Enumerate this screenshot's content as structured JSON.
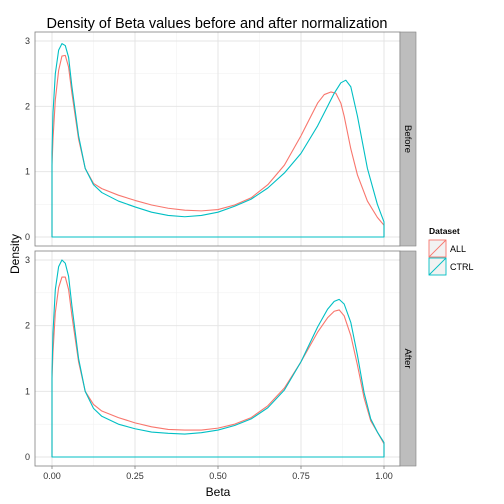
{
  "chart_data": {
    "type": "area",
    "title": "Density of Beta values before and after normalization",
    "xlabel": "Beta",
    "ylabel": "Density",
    "xlim": [
      0,
      1
    ],
    "ylim": [
      0,
      3
    ],
    "x_ticks": [
      "0.00",
      "0.25",
      "0.50",
      "0.75",
      "1.00"
    ],
    "y_ticks": [
      "0",
      "1",
      "2",
      "3"
    ],
    "grid": true,
    "legend": {
      "title": "Dataset",
      "position": "right",
      "entries": [
        {
          "name": "ALL",
          "color": "#F8766D"
        },
        {
          "name": "CTRL",
          "color": "#00BFC4"
        }
      ]
    },
    "panels": [
      {
        "label": "Before",
        "series": [
          {
            "name": "ALL",
            "color": "#F8766D",
            "x": [
              0,
              0.003,
              0.01,
              0.02,
              0.03,
              0.04,
              0.05,
              0.06,
              0.08,
              0.1,
              0.125,
              0.15,
              0.2,
              0.25,
              0.3,
              0.35,
              0.4,
              0.45,
              0.5,
              0.55,
              0.6,
              0.65,
              0.7,
              0.75,
              0.78,
              0.8,
              0.82,
              0.84,
              0.855,
              0.87,
              0.88,
              0.9,
              0.92,
              0.95,
              0.98,
              1.0
            ],
            "y": [
              1.1,
              1.5,
              2.1,
              2.55,
              2.77,
              2.78,
              2.6,
              2.2,
              1.5,
              1.05,
              0.82,
              0.74,
              0.64,
              0.56,
              0.49,
              0.44,
              0.41,
              0.4,
              0.42,
              0.49,
              0.6,
              0.8,
              1.1,
              1.55,
              1.85,
              2.05,
              2.18,
              2.22,
              2.2,
              2.05,
              1.85,
              1.35,
              0.95,
              0.55,
              0.3,
              0.18
            ]
          },
          {
            "name": "CTRL",
            "color": "#00BFC4",
            "x": [
              0,
              0.003,
              0.01,
              0.02,
              0.03,
              0.04,
              0.05,
              0.06,
              0.08,
              0.1,
              0.125,
              0.15,
              0.2,
              0.25,
              0.3,
              0.35,
              0.4,
              0.45,
              0.5,
              0.55,
              0.6,
              0.65,
              0.7,
              0.75,
              0.8,
              0.83,
              0.85,
              0.87,
              0.885,
              0.9,
              0.92,
              0.95,
              0.98,
              1.0
            ],
            "y": [
              1.3,
              1.9,
              2.5,
              2.86,
              2.96,
              2.93,
              2.75,
              2.3,
              1.55,
              1.05,
              0.8,
              0.68,
              0.55,
              0.46,
              0.38,
              0.33,
              0.31,
              0.33,
              0.38,
              0.47,
              0.58,
              0.75,
              0.98,
              1.28,
              1.7,
              2.0,
              2.2,
              2.36,
              2.4,
              2.3,
              1.85,
              1.05,
              0.5,
              0.23
            ]
          }
        ]
      },
      {
        "label": "After",
        "series": [
          {
            "name": "ALL",
            "color": "#F8766D",
            "x": [
              0,
              0.003,
              0.01,
              0.02,
              0.03,
              0.04,
              0.05,
              0.06,
              0.08,
              0.1,
              0.125,
              0.15,
              0.2,
              0.25,
              0.3,
              0.35,
              0.4,
              0.45,
              0.5,
              0.55,
              0.6,
              0.65,
              0.7,
              0.75,
              0.8,
              0.83,
              0.85,
              0.865,
              0.88,
              0.9,
              0.92,
              0.94,
              0.96,
              0.98,
              1.0
            ],
            "y": [
              1.2,
              1.6,
              2.2,
              2.58,
              2.74,
              2.74,
              2.55,
              2.15,
              1.45,
              1.0,
              0.8,
              0.7,
              0.6,
              0.52,
              0.46,
              0.42,
              0.41,
              0.41,
              0.44,
              0.5,
              0.6,
              0.78,
              1.05,
              1.45,
              1.9,
              2.12,
              2.22,
              2.24,
              2.15,
              1.85,
              1.4,
              0.9,
              0.55,
              0.38,
              0.2
            ]
          },
          {
            "name": "CTRL",
            "color": "#00BFC4",
            "x": [
              0,
              0.003,
              0.01,
              0.02,
              0.03,
              0.04,
              0.05,
              0.06,
              0.08,
              0.1,
              0.125,
              0.15,
              0.2,
              0.25,
              0.3,
              0.35,
              0.4,
              0.45,
              0.5,
              0.55,
              0.6,
              0.65,
              0.7,
              0.75,
              0.8,
              0.83,
              0.85,
              0.865,
              0.88,
              0.9,
              0.92,
              0.94,
              0.96,
              0.98,
              1.0
            ],
            "y": [
              1.3,
              1.9,
              2.55,
              2.9,
              3.0,
              2.95,
              2.75,
              2.3,
              1.5,
              1.0,
              0.74,
              0.62,
              0.5,
              0.43,
              0.38,
              0.36,
              0.35,
              0.37,
              0.41,
              0.48,
              0.58,
              0.75,
              1.02,
              1.45,
              1.98,
              2.25,
              2.37,
              2.4,
              2.33,
              2.05,
              1.55,
              0.98,
              0.58,
              0.38,
              0.22
            ]
          }
        ]
      }
    ]
  }
}
